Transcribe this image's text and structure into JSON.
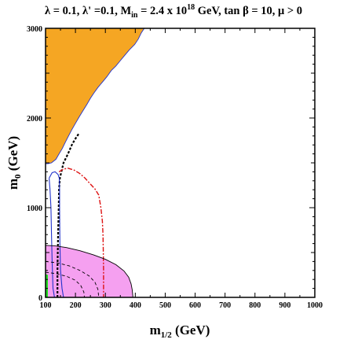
{
  "chart_data": {
    "type": "area",
    "title": {
      "main": "λ = 0.1, λ' =0.1, M",
      "main_sub": "in",
      "mid": " = 2.4 x 10",
      "mid_sup": "18",
      "end": " GeV, tan β = 10,  μ > 0"
    },
    "xlabel": {
      "main": "m",
      "sub": "1/2",
      "unit": " (GeV)"
    },
    "ylabel": {
      "main": "m",
      "sub": "0",
      "unit": " (GeV)"
    },
    "xlim": [
      100,
      1000
    ],
    "ylim": [
      0,
      3000
    ],
    "x_ticks": [
      100,
      200,
      300,
      400,
      500,
      600,
      700,
      800,
      900,
      1000
    ],
    "y_ticks": [
      0,
      1000,
      2000,
      3000
    ],
    "colors": {
      "orange_region": "#f5a623",
      "pink_region": "#f5a0f0",
      "green_region": "#22dd22",
      "red_contour": "#dd1111",
      "blue_contour": "#2233cc",
      "black_contour": "#000000"
    },
    "regions": [
      {
        "name_key": "orange-region",
        "color": "#f5a623",
        "points": [
          [
            100,
            3000
          ],
          [
            430,
            3000
          ],
          [
            420,
            2950
          ],
          [
            410,
            2880
          ],
          [
            398,
            2820
          ],
          [
            380,
            2760
          ],
          [
            365,
            2700
          ],
          [
            350,
            2640
          ],
          [
            335,
            2580
          ],
          [
            320,
            2530
          ],
          [
            305,
            2460
          ],
          [
            290,
            2400
          ],
          [
            275,
            2340
          ],
          [
            262,
            2280
          ],
          [
            250,
            2220
          ],
          [
            238,
            2150
          ],
          [
            225,
            2080
          ],
          [
            212,
            2010
          ],
          [
            200,
            1940
          ],
          [
            188,
            1870
          ],
          [
            177,
            1800
          ],
          [
            166,
            1730
          ],
          [
            156,
            1660
          ],
          [
            145,
            1600
          ],
          [
            135,
            1540
          ],
          [
            120,
            1500
          ],
          [
            108,
            1490
          ],
          [
            100,
            1490
          ]
        ]
      },
      {
        "name_key": "pink-region",
        "color": "#f5a0f0",
        "points": [
          [
            100,
            580
          ],
          [
            130,
            575
          ],
          [
            170,
            555
          ],
          [
            215,
            520
          ],
          [
            260,
            475
          ],
          [
            300,
            425
          ],
          [
            335,
            365
          ],
          [
            362,
            295
          ],
          [
            378,
            225
          ],
          [
            386,
            150
          ],
          [
            390,
            80
          ],
          [
            392,
            0
          ],
          [
            100,
            0
          ]
        ]
      },
      {
        "name_key": "green-region",
        "color": "#22dd22",
        "points": [
          [
            100,
            0
          ],
          [
            108,
            0
          ],
          [
            108,
            250
          ],
          [
            100,
            260
          ]
        ]
      }
    ],
    "lines": [
      {
        "name_key": "black-dotted-contour",
        "color": "#000000",
        "dash": "3,2",
        "width": 2.2,
        "points": [
          [
            140,
            0
          ],
          [
            140,
            300
          ],
          [
            142,
            700
          ],
          [
            144,
            1000
          ],
          [
            145,
            1200
          ],
          [
            148,
            1330
          ],
          [
            155,
            1430
          ],
          [
            160,
            1500
          ],
          [
            175,
            1600
          ],
          [
            188,
            1700
          ],
          [
            200,
            1770
          ],
          [
            212,
            1830
          ]
        ]
      },
      {
        "name_key": "red-dashdot-contour",
        "color": "#dd1111",
        "dash": "6,2,2,2",
        "width": 1.4,
        "points": [
          [
            145,
            1400
          ],
          [
            160,
            1430
          ],
          [
            175,
            1440
          ],
          [
            195,
            1420
          ],
          [
            215,
            1380
          ],
          [
            232,
            1330
          ],
          [
            248,
            1270
          ],
          [
            265,
            1210
          ],
          [
            278,
            1140
          ],
          [
            285,
            1000
          ],
          [
            290,
            850
          ],
          [
            292,
            700
          ],
          [
            293,
            500
          ],
          [
            294,
            300
          ],
          [
            294,
            100
          ],
          [
            294,
            0
          ]
        ]
      },
      {
        "name_key": "blue-contour-left",
        "color": "#2233cc",
        "dash": "",
        "width": 1.1,
        "points": [
          [
            112,
            1330
          ],
          [
            115,
            1200
          ],
          [
            118,
            1000
          ],
          [
            120,
            700
          ],
          [
            122,
            400
          ],
          [
            125,
            100
          ],
          [
            130,
            0
          ]
        ]
      },
      {
        "name_key": "blue-contour-right",
        "color": "#2233cc",
        "dash": "",
        "width": 1.1,
        "points": [
          [
            160,
            0
          ],
          [
            155,
            100
          ],
          [
            150,
            300
          ],
          [
            148,
            600
          ],
          [
            147,
            1000
          ],
          [
            147,
            1200
          ],
          [
            146,
            1330
          ]
        ]
      },
      {
        "name_key": "blue-contour-arc",
        "color": "#2233cc",
        "dash": "",
        "width": 1.1,
        "points": [
          [
            112,
            1330
          ],
          [
            122,
            1390
          ],
          [
            132,
            1400
          ],
          [
            142,
            1370
          ],
          [
            146,
            1330
          ]
        ]
      },
      {
        "name_key": "pink-boundary-dashed-inner",
        "color": "#000000",
        "dash": "4,3",
        "width": 0.9,
        "points": [
          [
            100,
            400
          ],
          [
            140,
            385
          ],
          [
            180,
            350
          ],
          [
            215,
            300
          ],
          [
            245,
            240
          ],
          [
            265,
            170
          ],
          [
            275,
            90
          ],
          [
            278,
            0
          ]
        ]
      },
      {
        "name_key": "pink-boundary-dashed-inner2",
        "color": "#000000",
        "dash": "4,3",
        "width": 0.9,
        "points": [
          [
            100,
            280
          ],
          [
            135,
            265
          ],
          [
            170,
            235
          ],
          [
            200,
            190
          ],
          [
            218,
            130
          ],
          [
            228,
            60
          ],
          [
            230,
            0
          ]
        ]
      },
      {
        "name_key": "pink-boundary-solid",
        "color": "#000000",
        "dash": "",
        "width": 0.9,
        "points": [
          [
            100,
            580
          ],
          [
            130,
            575
          ],
          [
            170,
            555
          ],
          [
            215,
            520
          ],
          [
            260,
            475
          ],
          [
            300,
            425
          ],
          [
            335,
            365
          ],
          [
            362,
            295
          ],
          [
            378,
            225
          ],
          [
            386,
            150
          ],
          [
            390,
            80
          ],
          [
            392,
            0
          ]
        ]
      },
      {
        "name_key": "orange-edge-blue",
        "color": "#2233cc",
        "dash": "",
        "width": 0.9,
        "points": [
          [
            430,
            3000
          ],
          [
            420,
            2950
          ],
          [
            410,
            2880
          ],
          [
            398,
            2820
          ],
          [
            380,
            2760
          ],
          [
            365,
            2700
          ],
          [
            350,
            2640
          ],
          [
            335,
            2580
          ],
          [
            320,
            2530
          ],
          [
            305,
            2460
          ],
          [
            290,
            2400
          ],
          [
            275,
            2340
          ],
          [
            262,
            2280
          ],
          [
            250,
            2220
          ],
          [
            238,
            2150
          ],
          [
            225,
            2080
          ],
          [
            212,
            2010
          ],
          [
            200,
            1940
          ],
          [
            188,
            1870
          ],
          [
            177,
            1800
          ],
          [
            166,
            1730
          ],
          [
            156,
            1660
          ],
          [
            145,
            1600
          ],
          [
            135,
            1540
          ],
          [
            120,
            1500
          ],
          [
            108,
            1490
          ],
          [
            100,
            1490
          ]
        ]
      }
    ]
  }
}
